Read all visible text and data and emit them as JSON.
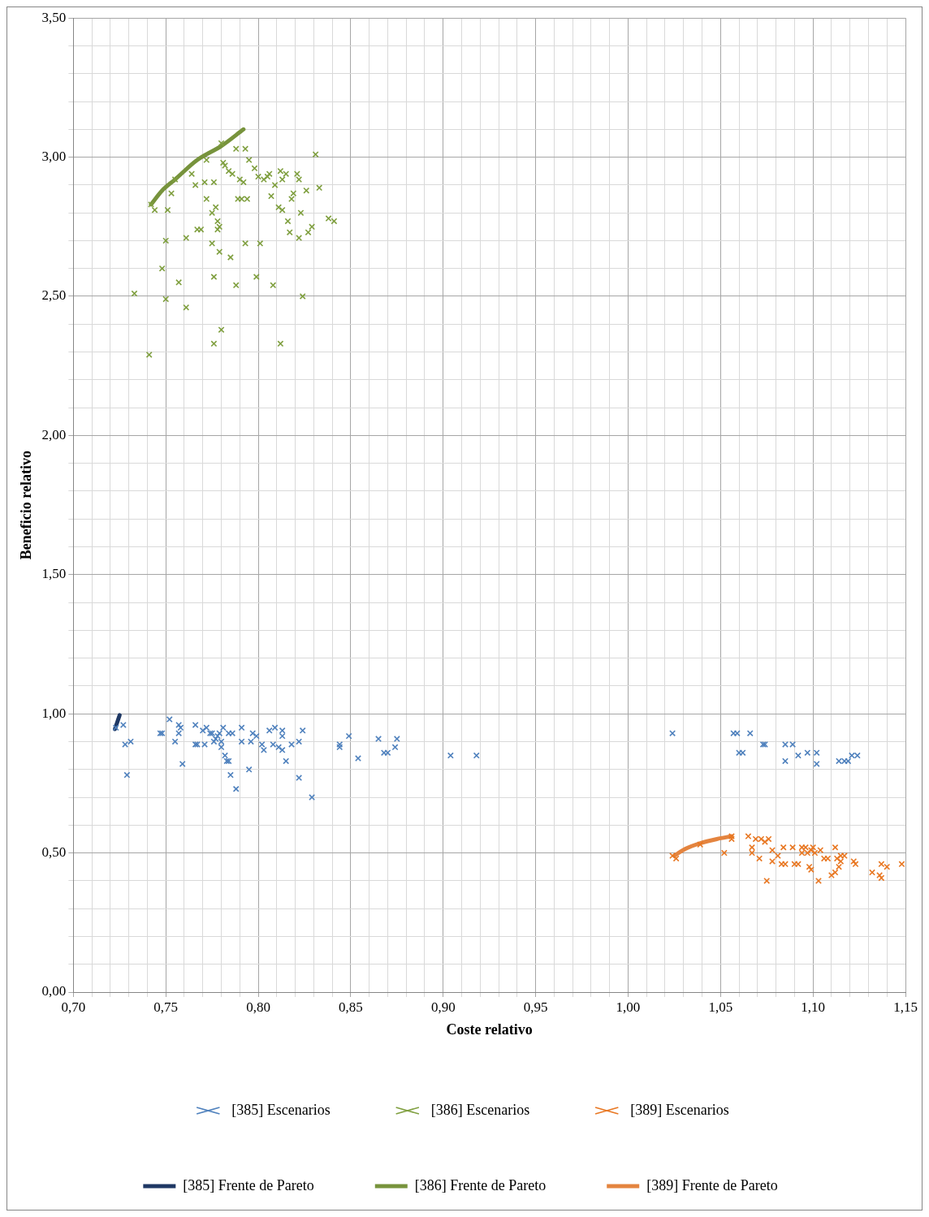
{
  "chart_data": {
    "type": "scatter",
    "xlabel": "Coste relativo",
    "ylabel": "Beneficio relativo",
    "grid": true,
    "legend": "bottom",
    "xlim": [
      0.7,
      1.15
    ],
    "xticks": [
      {
        "value": 0.7,
        "label": "0,70"
      },
      {
        "value": 0.71,
        "label": null
      },
      {
        "value": 0.72,
        "label": null
      },
      {
        "value": 0.73,
        "label": null
      },
      {
        "value": 0.74,
        "label": null
      },
      {
        "value": 0.75,
        "label": "0,75"
      },
      {
        "value": 0.76,
        "label": null
      },
      {
        "value": 0.77,
        "label": null
      },
      {
        "value": 0.78,
        "label": null
      },
      {
        "value": 0.79,
        "label": null
      },
      {
        "value": 0.8,
        "label": "0,80"
      },
      {
        "value": 0.81,
        "label": null
      },
      {
        "value": 0.82,
        "label": null
      },
      {
        "value": 0.83,
        "label": null
      },
      {
        "value": 0.84,
        "label": null
      },
      {
        "value": 0.85,
        "label": "0,85"
      },
      {
        "value": 0.86,
        "label": null
      },
      {
        "value": 0.87,
        "label": null
      },
      {
        "value": 0.88,
        "label": null
      },
      {
        "value": 0.89,
        "label": null
      },
      {
        "value": 0.9,
        "label": "0,90"
      },
      {
        "value": 0.91,
        "label": null
      },
      {
        "value": 0.92,
        "label": null
      },
      {
        "value": 0.93,
        "label": null
      },
      {
        "value": 0.94,
        "label": null
      },
      {
        "value": 0.95,
        "label": "0,95"
      },
      {
        "value": 0.96,
        "label": null
      },
      {
        "value": 0.97,
        "label": null
      },
      {
        "value": 0.98,
        "label": null
      },
      {
        "value": 0.99,
        "label": null
      },
      {
        "value": 1.0,
        "label": "1,00"
      },
      {
        "value": 1.01,
        "label": null
      },
      {
        "value": 1.02,
        "label": null
      },
      {
        "value": 1.03,
        "label": null
      },
      {
        "value": 1.04,
        "label": null
      },
      {
        "value": 1.05,
        "label": "1,05"
      },
      {
        "value": 1.06,
        "label": null
      },
      {
        "value": 1.07,
        "label": null
      },
      {
        "value": 1.08,
        "label": null
      },
      {
        "value": 1.09,
        "label": null
      },
      {
        "value": 1.1,
        "label": "1,10"
      },
      {
        "value": 1.11,
        "label": null
      },
      {
        "value": 1.12,
        "label": null
      },
      {
        "value": 1.13,
        "label": null
      },
      {
        "value": 1.14,
        "label": null
      },
      {
        "value": 1.15,
        "label": "1,15"
      }
    ],
    "ylim": [
      0,
      3.5
    ],
    "yticks": [
      {
        "value": 0,
        "label": "0,00"
      },
      {
        "value": 0.1,
        "label": null
      },
      {
        "value": 0.2,
        "label": null
      },
      {
        "value": 0.3,
        "label": null
      },
      {
        "value": 0.4,
        "label": null
      },
      {
        "value": 0.5,
        "label": "0,50"
      },
      {
        "value": 0.6,
        "label": null
      },
      {
        "value": 0.7,
        "label": null
      },
      {
        "value": 0.8,
        "label": null
      },
      {
        "value": 0.9,
        "label": null
      },
      {
        "value": 1.0,
        "label": "1,00"
      },
      {
        "value": 1.1,
        "label": null
      },
      {
        "value": 1.2,
        "label": null
      },
      {
        "value": 1.3,
        "label": null
      },
      {
        "value": 1.4,
        "label": null
      },
      {
        "value": 1.5,
        "label": "1,50"
      },
      {
        "value": 1.6,
        "label": null
      },
      {
        "value": 1.7,
        "label": null
      },
      {
        "value": 1.8,
        "label": null
      },
      {
        "value": 1.9,
        "label": null
      },
      {
        "value": 2.0,
        "label": "2,00"
      },
      {
        "value": 2.1,
        "label": null
      },
      {
        "value": 2.2,
        "label": null
      },
      {
        "value": 2.3,
        "label": null
      },
      {
        "value": 2.4,
        "label": null
      },
      {
        "value": 2.5,
        "label": "2,50"
      },
      {
        "value": 2.6,
        "label": null
      },
      {
        "value": 2.7,
        "label": null
      },
      {
        "value": 2.8,
        "label": null
      },
      {
        "value": 2.9,
        "label": null
      },
      {
        "value": 3.0,
        "label": "3,00"
      },
      {
        "value": 3.1,
        "label": null
      },
      {
        "value": 3.2,
        "label": null
      },
      {
        "value": 3.3,
        "label": null
      },
      {
        "value": 3.4,
        "label": null
      },
      {
        "value": 3.5,
        "label": "3,50"
      }
    ],
    "series": [
      {
        "name": "[385] Escenarios",
        "marker": "cross",
        "color": "#4f81bd",
        "x": [
          0.723,
          0.727,
          0.728,
          0.731,
          0.729,
          0.747,
          0.748,
          0.752,
          0.755,
          0.757,
          0.758,
          0.757,
          0.759,
          0.766,
          0.766,
          0.767,
          0.77,
          0.772,
          0.771,
          0.774,
          0.775,
          0.776,
          0.777,
          0.778,
          0.779,
          0.78,
          0.78,
          0.781,
          0.782,
          0.783,
          0.784,
          0.785,
          0.784,
          0.786,
          0.788,
          0.791,
          0.791,
          0.795,
          0.796,
          0.797,
          0.799,
          0.802,
          0.803,
          0.806,
          0.809,
          0.808,
          0.811,
          0.813,
          0.813,
          0.813,
          0.815,
          0.818,
          0.822,
          0.822,
          0.824,
          0.829,
          0.844,
          0.844,
          0.849,
          0.854,
          0.865,
          0.868,
          0.87,
          0.874,
          0.875,
          0.904,
          0.918,
          1.024,
          1.057,
          1.059,
          1.066,
          1.06,
          1.062,
          1.073,
          1.074,
          1.085,
          1.089,
          1.085,
          1.092,
          1.097,
          1.102,
          1.102,
          1.114,
          1.117,
          1.119,
          1.121,
          1.124
        ],
        "values": [
          0.95,
          0.96,
          0.89,
          0.9,
          0.78,
          0.93,
          0.93,
          0.98,
          0.9,
          0.96,
          0.95,
          0.93,
          0.82,
          0.96,
          0.89,
          0.89,
          0.94,
          0.95,
          0.89,
          0.93,
          0.93,
          0.9,
          0.91,
          0.92,
          0.93,
          0.9,
          0.88,
          0.95,
          0.85,
          0.83,
          0.83,
          0.78,
          0.93,
          0.93,
          0.73,
          0.95,
          0.9,
          0.8,
          0.9,
          0.93,
          0.92,
          0.89,
          0.87,
          0.94,
          0.95,
          0.89,
          0.88,
          0.92,
          0.94,
          0.87,
          0.83,
          0.89,
          0.77,
          0.9,
          0.94,
          0.7,
          0.89,
          0.88,
          0.92,
          0.84,
          0.91,
          0.86,
          0.86,
          0.88,
          0.91,
          0.85,
          0.85,
          0.93,
          0.93,
          0.93,
          0.93,
          0.86,
          0.86,
          0.89,
          0.89,
          0.89,
          0.89,
          0.83,
          0.85,
          0.86,
          0.86,
          0.82,
          0.83,
          0.83,
          0.83,
          0.85,
          0.85
        ]
      },
      {
        "name": "[386] Escenarios",
        "marker": "cross",
        "color": "#7f9f3f",
        "x": [
          0.733,
          0.741,
          0.742,
          0.744,
          0.748,
          0.75,
          0.75,
          0.751,
          0.753,
          0.755,
          0.757,
          0.761,
          0.761,
          0.764,
          0.766,
          0.767,
          0.769,
          0.771,
          0.772,
          0.772,
          0.776,
          0.775,
          0.775,
          0.776,
          0.776,
          0.777,
          0.778,
          0.778,
          0.779,
          0.779,
          0.78,
          0.78,
          0.781,
          0.782,
          0.784,
          0.785,
          0.786,
          0.788,
          0.788,
          0.789,
          0.79,
          0.791,
          0.792,
          0.793,
          0.794,
          0.793,
          0.795,
          0.798,
          0.799,
          0.8,
          0.801,
          0.803,
          0.805,
          0.806,
          0.807,
          0.808,
          0.809,
          0.811,
          0.812,
          0.812,
          0.813,
          0.813,
          0.815,
          0.816,
          0.817,
          0.818,
          0.819,
          0.821,
          0.822,
          0.822,
          0.823,
          0.824,
          0.826,
          0.827,
          0.829,
          0.831,
          0.833,
          0.838,
          0.841
        ],
        "values": [
          2.51,
          2.29,
          2.83,
          2.81,
          2.6,
          2.49,
          2.7,
          2.81,
          2.87,
          2.92,
          2.55,
          2.71,
          2.46,
          2.94,
          2.9,
          2.74,
          2.74,
          2.91,
          2.85,
          2.99,
          2.57,
          2.8,
          2.69,
          2.33,
          2.91,
          2.82,
          2.74,
          2.77,
          2.66,
          2.75,
          2.38,
          3.05,
          2.98,
          2.97,
          2.95,
          2.64,
          2.94,
          2.54,
          3.03,
          2.85,
          2.92,
          2.85,
          2.91,
          2.69,
          2.85,
          3.03,
          2.99,
          2.96,
          2.57,
          2.93,
          2.69,
          2.92,
          2.93,
          2.94,
          2.86,
          2.54,
          2.9,
          2.82,
          2.95,
          2.33,
          2.81,
          2.92,
          2.94,
          2.77,
          2.73,
          2.85,
          2.87,
          2.94,
          2.71,
          2.92,
          2.8,
          2.5,
          2.88,
          2.73,
          2.75,
          3.01,
          2.89,
          2.78,
          2.77
        ]
      },
      {
        "name": "[389] Escenarios",
        "marker": "cross",
        "color": "#e87722",
        "x": [
          1.024,
          1.026,
          1.039,
          1.052,
          1.056,
          1.056,
          1.065,
          1.067,
          1.067,
          1.069,
          1.072,
          1.071,
          1.074,
          1.075,
          1.076,
          1.078,
          1.078,
          1.081,
          1.083,
          1.084,
          1.085,
          1.089,
          1.09,
          1.092,
          1.094,
          1.094,
          1.096,
          1.097,
          1.098,
          1.099,
          1.099,
          1.1,
          1.101,
          1.103,
          1.104,
          1.106,
          1.108,
          1.11,
          1.112,
          1.112,
          1.113,
          1.115,
          1.114,
          1.115,
          1.117,
          1.122,
          1.123,
          1.132,
          1.136,
          1.137,
          1.137,
          1.14,
          1.148
        ],
        "values": [
          0.49,
          0.48,
          0.53,
          0.5,
          0.56,
          0.55,
          0.56,
          0.52,
          0.5,
          0.55,
          0.55,
          0.48,
          0.54,
          0.4,
          0.55,
          0.51,
          0.47,
          0.49,
          0.46,
          0.52,
          0.46,
          0.52,
          0.46,
          0.46,
          0.52,
          0.5,
          0.52,
          0.5,
          0.45,
          0.44,
          0.51,
          0.52,
          0.5,
          0.4,
          0.51,
          0.48,
          0.48,
          0.42,
          0.43,
          0.52,
          0.48,
          0.49,
          0.45,
          0.47,
          0.49,
          0.47,
          0.46,
          0.43,
          0.42,
          0.41,
          0.46,
          0.45,
          0.46
        ]
      },
      {
        "name": "[385] Frente de Pareto",
        "type": "line",
        "marker": "none",
        "color": "#1f3864",
        "x": [
          0.7225,
          0.725
        ],
        "values": [
          0.945,
          0.995
        ]
      },
      {
        "name": "[386] Frente de Pareto",
        "type": "line",
        "marker": "none",
        "color": "#77933c",
        "x": [
          0.742,
          0.748,
          0.755,
          0.767,
          0.78,
          0.792
        ],
        "values": [
          2.83,
          2.88,
          2.92,
          2.99,
          3.04,
          3.1
        ]
      },
      {
        "name": "[389] Frente de Pareto",
        "type": "line",
        "marker": "none",
        "color": "#e4843f",
        "x": [
          1.025,
          1.031,
          1.039,
          1.048,
          1.056
        ],
        "values": [
          0.49,
          0.515,
          0.535,
          0.55,
          0.56
        ]
      }
    ]
  }
}
